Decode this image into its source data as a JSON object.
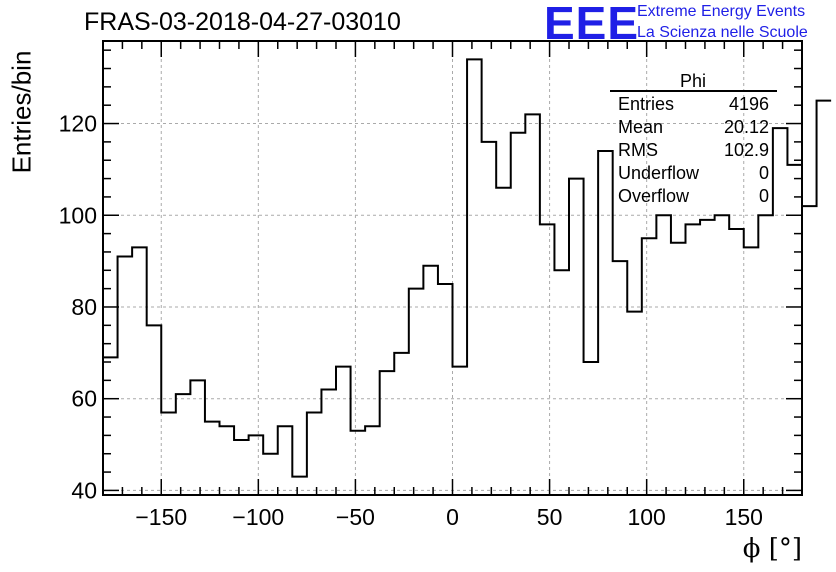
{
  "title": "FRAS-03-2018-04-27-03010",
  "logo": {
    "mark": "EEE",
    "line1": "Extreme Energy Events",
    "line2": "La Scienza nelle Scuole",
    "color": "#1f1fe6"
  },
  "stats_box": {
    "name": "Phi",
    "rows": [
      {
        "label": "Entries",
        "value": "4196"
      },
      {
        "label": "Mean",
        "value": "20.12"
      },
      {
        "label": "RMS",
        "value": "102.9"
      },
      {
        "label": "Underflow",
        "value": "0"
      },
      {
        "label": "Overflow",
        "value": "0"
      }
    ]
  },
  "chart_data": {
    "type": "histogram",
    "title": "FRAS-03-2018-04-27-03010",
    "xlabel": "ϕ [°]",
    "ylabel": "Entries/bin",
    "xlim": [
      -180,
      180
    ],
    "ylim": [
      39,
      138
    ],
    "xticks": [
      -150,
      -100,
      -50,
      0,
      50,
      100,
      150
    ],
    "xtick_labels": [
      "−150",
      "−100",
      "−50",
      "0",
      "50",
      "100",
      "150"
    ],
    "yticks": [
      40,
      60,
      80,
      100,
      120
    ],
    "ytick_labels": [
      "40",
      "60",
      "80",
      "100",
      "120"
    ],
    "grid": true,
    "bin_width": 7.5,
    "bin_edges_start": -180,
    "values": [
      69,
      91,
      93,
      76,
      57,
      61,
      64,
      55,
      54,
      51,
      52,
      48,
      54,
      43,
      57,
      62,
      67,
      53,
      54,
      66,
      70,
      84,
      89,
      85,
      67,
      134,
      116,
      106,
      118,
      122,
      98,
      88,
      108,
      68,
      114,
      90,
      79,
      95,
      100,
      94,
      98,
      99,
      100,
      97,
      93,
      100,
      119,
      111,
      102,
      125
    ]
  }
}
